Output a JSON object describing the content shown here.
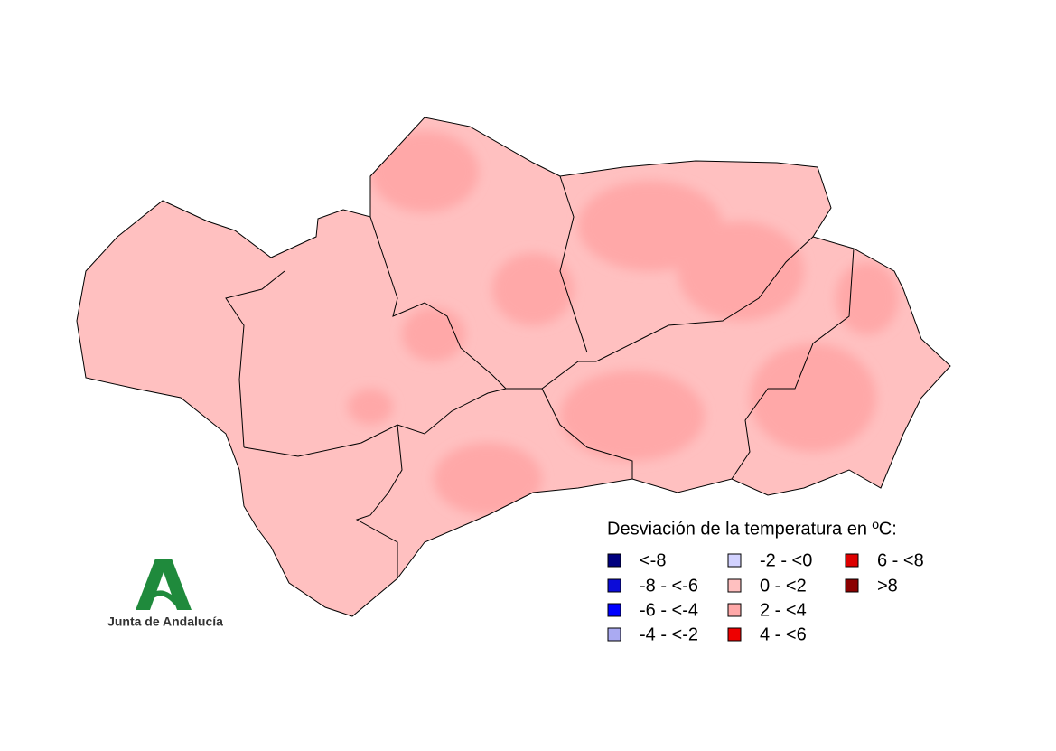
{
  "legend": {
    "title": "Desviación de la temperatura en ºC:",
    "items": [
      {
        "label": "<-8",
        "color": "#00007f"
      },
      {
        "label": "-8 - <-6",
        "color": "#0c0cd8"
      },
      {
        "label": "-6 - <-4",
        "color": "#0000ff"
      },
      {
        "label": "-4 - <-2",
        "color": "#aaaaf2"
      },
      {
        "label": "-2 - <0",
        "color": "#d2d2ff"
      },
      {
        "label": "0 - <2",
        "color": "#ffc0c0"
      },
      {
        "label": "2 - <4",
        "color": "#ffa8a8"
      },
      {
        "label": "4 - <6",
        "color": "#ee0000"
      },
      {
        "label": "6 - <8",
        "color": "#dd0000"
      },
      {
        "label": ">8",
        "color": "#8b0000"
      }
    ]
  },
  "logo": {
    "text": "Junta de Andalucía"
  }
}
